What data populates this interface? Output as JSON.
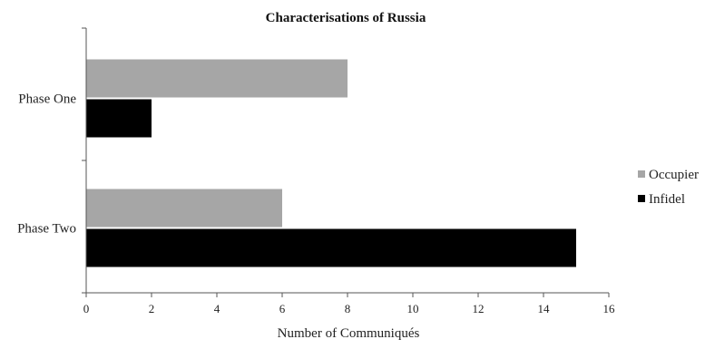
{
  "chart_data": {
    "type": "bar",
    "orientation": "horizontal",
    "title": "Characterisations of Russia",
    "xlabel": "Number of Communiqués",
    "ylabel": "",
    "categories": [
      "Phase One",
      "Phase Two"
    ],
    "series": [
      {
        "name": "Occupier",
        "color": "#a6a6a6",
        "values": [
          8,
          6
        ]
      },
      {
        "name": "Infidel",
        "color": "#000000",
        "values": [
          2,
          15
        ]
      }
    ],
    "xlim": [
      0,
      16
    ],
    "xticks": [
      "0",
      "2",
      "4",
      "6",
      "8",
      "10",
      "12",
      "14",
      "16"
    ],
    "grid": false,
    "legend": "right"
  }
}
